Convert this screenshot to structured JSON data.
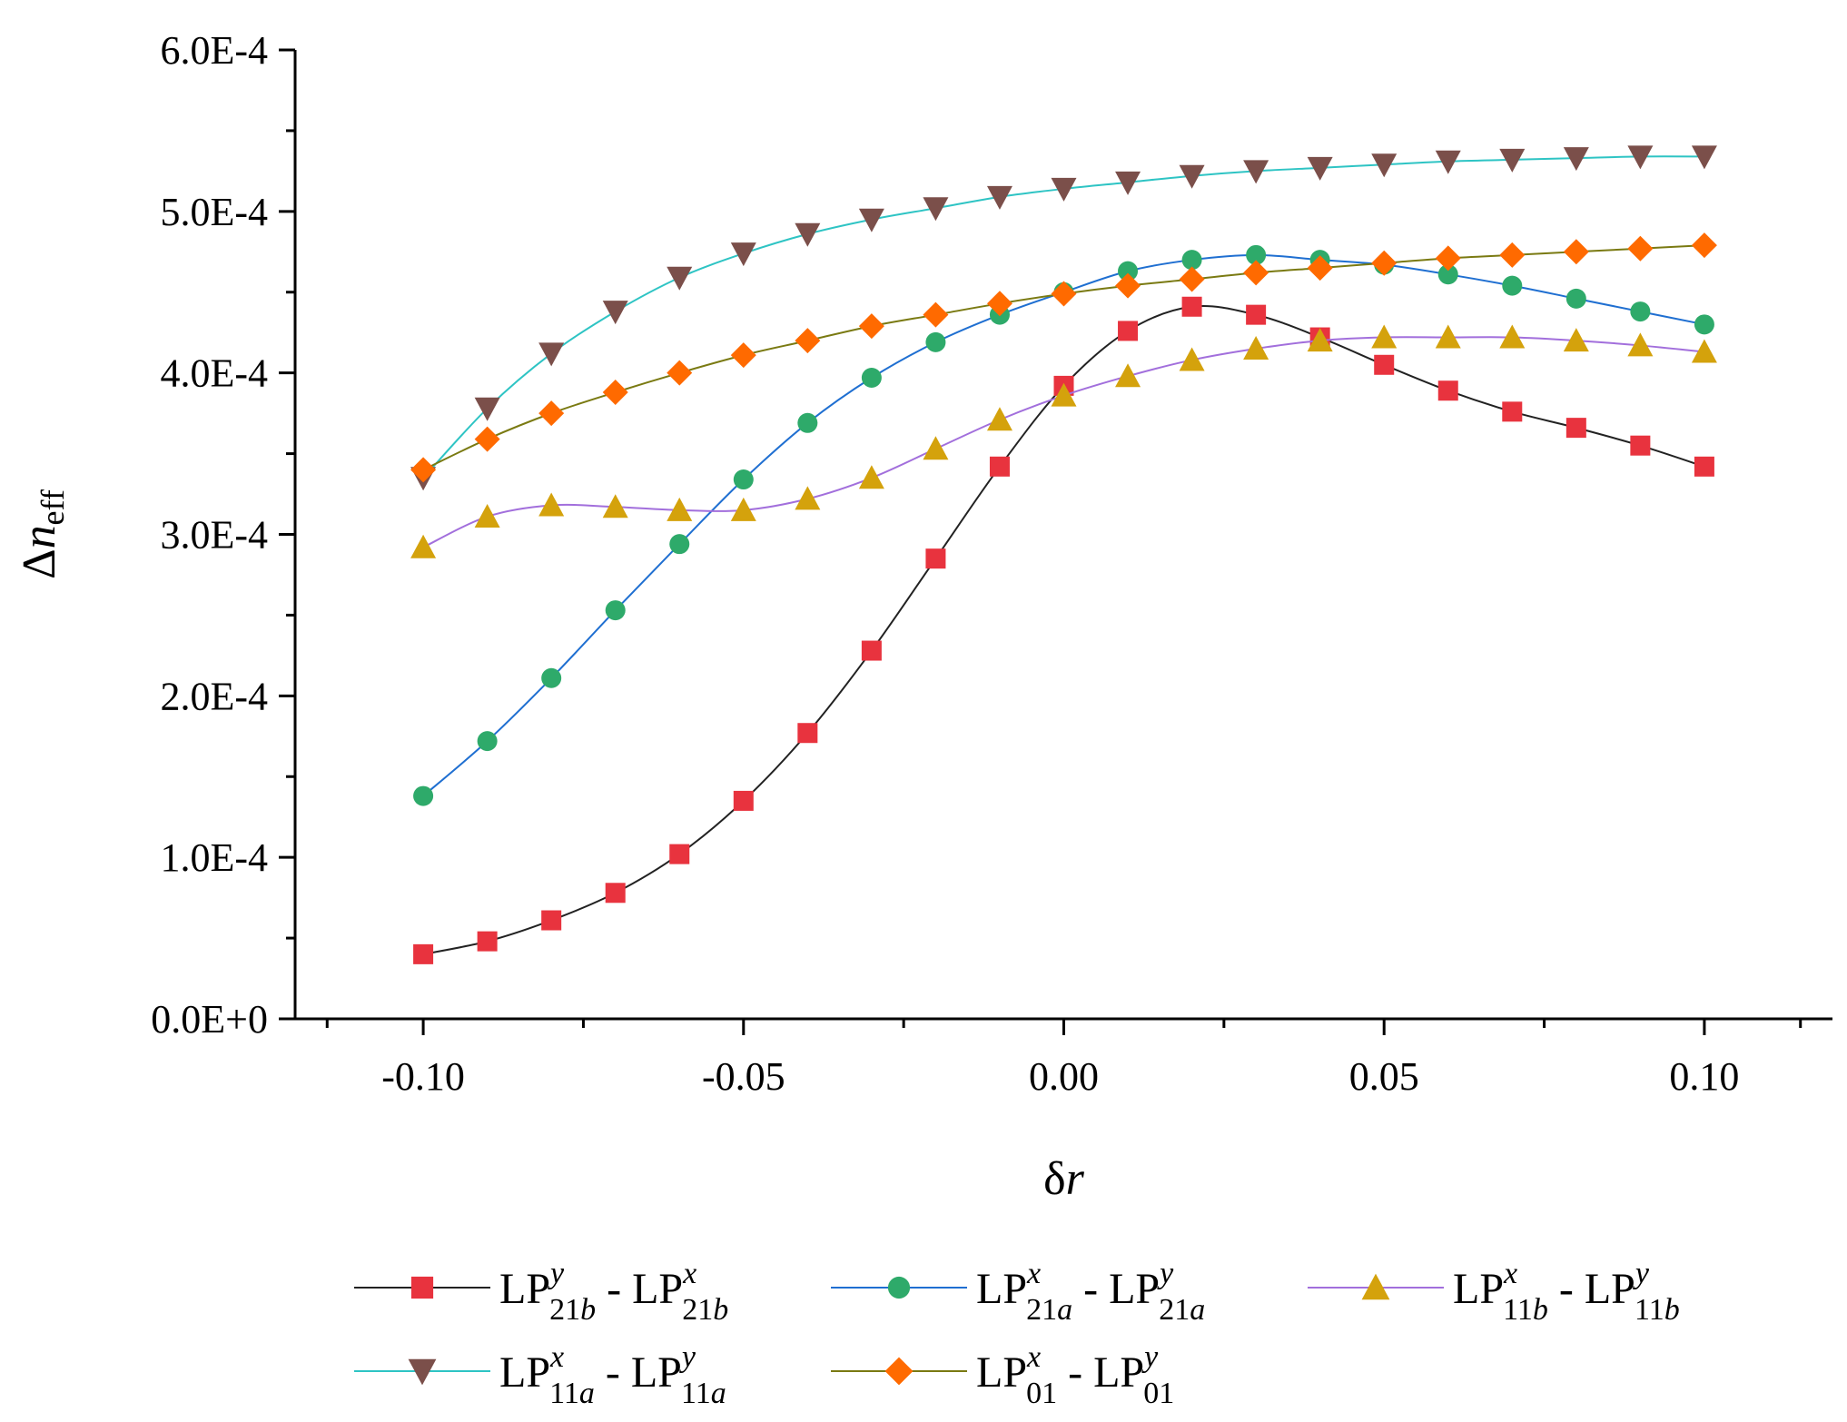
{
  "chart_data": {
    "type": "line",
    "title": "",
    "xlabel": {
      "main": "δ",
      "italic": "r"
    },
    "ylabel": {
      "main": "Δ",
      "italic": "n",
      "sub": "eff"
    },
    "xlim": [
      -0.12,
      0.12
    ],
    "ylim": [
      0,
      0.0006
    ],
    "x_ticks": [
      -0.1,
      -0.05,
      0.0,
      0.05,
      0.1
    ],
    "x_tick_labels": [
      "-0.10",
      "-0.05",
      "0.00",
      "0.05",
      "0.10"
    ],
    "y_ticks": [
      0,
      0.0001,
      0.0002,
      0.0003,
      0.0004,
      0.0005,
      0.0006
    ],
    "y_tick_labels": [
      "0.0E+0",
      "1.0E-4",
      "2.0E-4",
      "3.0E-4",
      "4.0E-4",
      "5.0E-4",
      "6.0E-4"
    ],
    "grid": false,
    "legend_position": "bottom",
    "x": [
      -0.1,
      -0.09,
      -0.08,
      -0.07,
      -0.06,
      -0.05,
      -0.04,
      -0.03,
      -0.02,
      -0.01,
      0.0,
      0.01,
      0.02,
      0.03,
      0.04,
      0.05,
      0.06,
      0.07,
      0.08,
      0.09,
      0.1
    ],
    "series": [
      {
        "name": "LP21b(y) - LP21b(x)",
        "label": [
          {
            "t": "LP",
            "sup": "y",
            "sub": "21",
            "subi": "b"
          },
          {
            "t": " - "
          },
          {
            "t": "LP",
            "sup": "x",
            "sub": "21",
            "subi": "b"
          }
        ],
        "marker": "square",
        "marker_color": "#e8333e",
        "line_color": "#222222",
        "values": [
          4e-05,
          4.8e-05,
          6.1e-05,
          7.8e-05,
          0.000102,
          0.000135,
          0.000177,
          0.000228,
          0.000285,
          0.000342,
          0.000392,
          0.000426,
          0.000441,
          0.000436,
          0.000422,
          0.000405,
          0.000389,
          0.000376,
          0.000366,
          0.000355,
          0.000342
        ]
      },
      {
        "name": "LP21a(x) - LP21a(y)",
        "label": [
          {
            "t": "LP",
            "sup": "x",
            "sub": "21",
            "subi": "a"
          },
          {
            "t": " - "
          },
          {
            "t": "LP",
            "sup": "y",
            "sub": "21",
            "subi": "a"
          }
        ],
        "marker": "circle",
        "marker_color": "#2eaa6a",
        "line_color": "#1f6fd1",
        "values": [
          0.000138,
          0.000172,
          0.000211,
          0.000253,
          0.000294,
          0.000334,
          0.000369,
          0.000397,
          0.000419,
          0.000436,
          0.00045,
          0.000463,
          0.00047,
          0.000473,
          0.00047,
          0.000467,
          0.000461,
          0.000454,
          0.000446,
          0.000438,
          0.00043
        ]
      },
      {
        "name": "LP11b(x) - LP11b(y)",
        "label": [
          {
            "t": "LP",
            "sup": "x",
            "sub": "11",
            "subi": "b"
          },
          {
            "t": " - "
          },
          {
            "t": "LP",
            "sup": "y",
            "sub": "11",
            "subi": "b"
          }
        ],
        "marker": "triangle-up",
        "marker_color": "#d4a20c",
        "line_color": "#a26fdc",
        "values": [
          0.000292,
          0.000311,
          0.000318,
          0.000317,
          0.000315,
          0.000315,
          0.000322,
          0.000335,
          0.000353,
          0.000371,
          0.000386,
          0.000398,
          0.000408,
          0.000415,
          0.00042,
          0.000422,
          0.000422,
          0.000422,
          0.00042,
          0.000417,
          0.000413
        ]
      },
      {
        "name": "LP11a(x) - LP11a(y)",
        "label": [
          {
            "t": "LP",
            "sup": "x",
            "sub": "11",
            "subi": "a"
          },
          {
            "t": " - "
          },
          {
            "t": "LP",
            "sup": "y",
            "sub": "11",
            "subi": "a"
          }
        ],
        "marker": "triangle-down",
        "marker_color": "#7b4f4a",
        "line_color": "#2ec4c4",
        "values": [
          0.000335,
          0.000378,
          0.000412,
          0.000438,
          0.000459,
          0.000474,
          0.000486,
          0.000495,
          0.000502,
          0.000509,
          0.000514,
          0.000518,
          0.000522,
          0.000525,
          0.000527,
          0.000529,
          0.000531,
          0.000532,
          0.000533,
          0.000534,
          0.000534
        ]
      },
      {
        "name": "LP01(x) - LP01(y)",
        "label": [
          {
            "t": "LP",
            "sup": "x",
            "sub": "01",
            "subi": ""
          },
          {
            "t": " - "
          },
          {
            "t": "LP",
            "sup": "y",
            "sub": "01",
            "subi": ""
          }
        ],
        "marker": "diamond",
        "marker_color": "#ff6a00",
        "line_color": "#7a7a12",
        "values": [
          0.00034,
          0.000359,
          0.000375,
          0.000388,
          0.0004,
          0.000411,
          0.00042,
          0.000429,
          0.000436,
          0.000443,
          0.000449,
          0.000454,
          0.000458,
          0.000462,
          0.000465,
          0.000468,
          0.000471,
          0.000473,
          0.000475,
          0.000477,
          0.000479
        ]
      }
    ]
  }
}
